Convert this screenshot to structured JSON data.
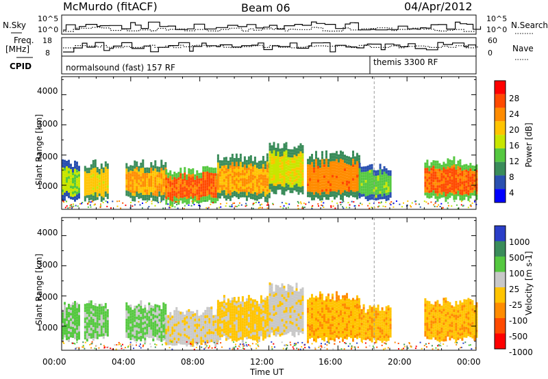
{
  "header": {
    "title": "McMurdo (fitACF)",
    "beam": "Beam 06",
    "date": "04/Apr/2012"
  },
  "strip_labels": {
    "nsky": "N.Sky",
    "nsky_ticks": [
      "10^5",
      "10^0"
    ],
    "freq_line1": "Freq.",
    "freq_line2": "[MHz]",
    "freq_ticks": [
      "18",
      "8"
    ],
    "cpid": "CPID",
    "nsearch": "N.Search",
    "nsearch_ticks": [
      "10^5",
      "10^0"
    ],
    "nave": "Nave",
    "nave_ticks": [
      "60",
      "0"
    ],
    "mode1": "normalsound (fast) 157 RF",
    "mode2": "themis 3300 RF"
  },
  "panels": {
    "ylabel": "Slant Range [km]",
    "yticks": [
      "4000",
      "3000",
      "2000",
      "1000"
    ],
    "xticks": [
      "00:00",
      "04:00",
      "08:00",
      "12:00",
      "16:00",
      "20:00",
      "00:00"
    ],
    "xlabel": "Time UT"
  },
  "colorbars": {
    "power": {
      "label": "Power [dB]",
      "ticks": [
        "28",
        "24",
        "20",
        "16",
        "12",
        "8",
        "4"
      ],
      "colors": [
        "#ff0000",
        "#ff4a00",
        "#ff8c00",
        "#ffc400",
        "#c8e600",
        "#55c840",
        "#3a8c5a",
        "#2a50b0",
        "#0000ff"
      ]
    },
    "velocity": {
      "label": "Velocity [m s-1]",
      "ticks": [
        "1000",
        "500",
        "100",
        "25",
        "-25",
        "-100",
        "-500",
        "-1000"
      ],
      "colors": [
        "#2a3ec8",
        "#3a8c5a",
        "#55c840",
        "#c8c8c8",
        "#ffc400",
        "#ff8c00",
        "#ff4a00",
        "#ff0000"
      ]
    }
  },
  "chart_data": [
    {
      "type": "heatmap",
      "title": "Power",
      "xlabel": "Time UT",
      "ylabel": "Slant Range [km]",
      "xlim": [
        0,
        24
      ],
      "ylim": [
        200,
        4600
      ],
      "colorbar_label": "Power [dB]",
      "colorbar_range": [
        0,
        30
      ],
      "regions": [
        {
          "t": [
            0.0,
            1.0
          ],
          "range": [
            600,
            1700
          ],
          "value": 14
        },
        {
          "t": [
            1.3,
            2.7
          ],
          "range": [
            600,
            1700
          ],
          "value": 18
        },
        {
          "t": [
            3.7,
            6.0
          ],
          "range": [
            600,
            1700
          ],
          "value": 20
        },
        {
          "t": [
            6.0,
            9.0
          ],
          "range": [
            450,
            1500
          ],
          "value": 24
        },
        {
          "t": [
            9.0,
            12.0
          ],
          "range": [
            600,
            1900
          ],
          "value": 20
        },
        {
          "t": [
            12.0,
            14.0
          ],
          "range": [
            800,
            2300
          ],
          "value": 16
        },
        {
          "t": [
            14.2,
            17.2
          ],
          "range": [
            600,
            2000
          ],
          "value": 22
        },
        {
          "t": [
            17.2,
            19.0
          ],
          "range": [
            600,
            1600
          ],
          "value": 12
        },
        {
          "t": [
            21.0,
            24.0
          ],
          "range": [
            600,
            1800
          ],
          "value": 24
        }
      ]
    },
    {
      "type": "heatmap",
      "title": "Velocity",
      "xlabel": "Time UT",
      "ylabel": "Slant Range [km]",
      "xlim": [
        0,
        24
      ],
      "ylim": [
        200,
        4600
      ],
      "colorbar_label": "Velocity [m s-1]",
      "colorbar_range": [
        -1000,
        1000
      ],
      "regions": [
        {
          "t": [
            0.0,
            1.0
          ],
          "range": [
            600,
            1700
          ],
          "value": 300
        },
        {
          "t": [
            1.3,
            2.7
          ],
          "range": [
            600,
            1700
          ],
          "value": 300
        },
        {
          "t": [
            3.7,
            6.0
          ],
          "range": [
            600,
            1700
          ],
          "value": 300
        },
        {
          "t": [
            6.0,
            9.0
          ],
          "range": [
            450,
            1500
          ],
          "value": 60
        },
        {
          "t": [
            9.0,
            12.0
          ],
          "range": [
            600,
            1900
          ],
          "value": -60
        },
        {
          "t": [
            12.0,
            14.0
          ],
          "range": [
            800,
            2300
          ],
          "value": 60
        },
        {
          "t": [
            14.2,
            17.2
          ],
          "range": [
            600,
            2000
          ],
          "value": -200
        },
        {
          "t": [
            17.2,
            19.0
          ],
          "range": [
            600,
            1600
          ],
          "value": -200
        },
        {
          "t": [
            21.0,
            24.0
          ],
          "range": [
            600,
            1800
          ],
          "value": -200
        }
      ]
    }
  ]
}
